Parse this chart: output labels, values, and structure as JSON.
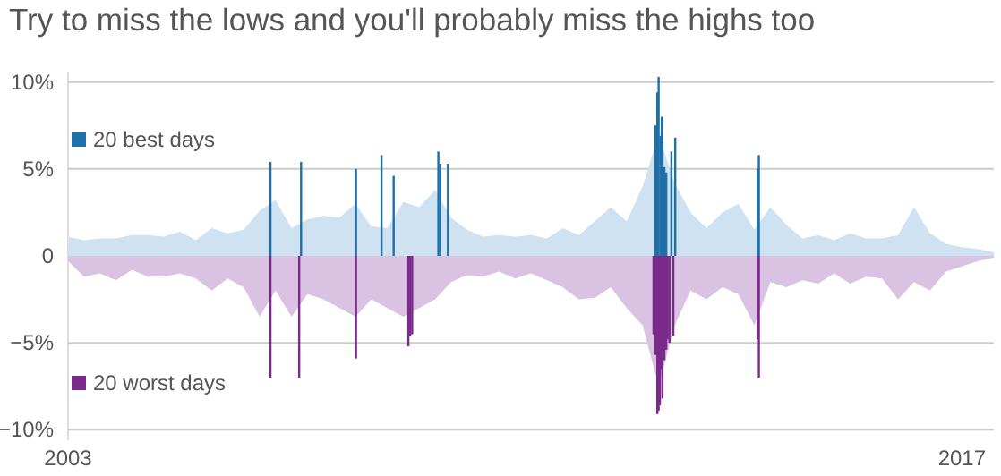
{
  "chart_data": {
    "type": "area",
    "title": "Try to miss the lows and you'll probably miss the highs too",
    "xlim": [
      2003,
      2017.5
    ],
    "xticks": [
      2003,
      2017
    ],
    "ylim": [
      -10.6,
      10.6
    ],
    "yticks": [
      {
        "value": -10,
        "label": "−10%"
      },
      {
        "value": -5,
        "label": "−5%"
      },
      0,
      {
        "value": 5,
        "label": "5%"
      },
      {
        "value": 10,
        "label": "10%"
      }
    ],
    "grid": "y",
    "legend": "left",
    "series": [
      {
        "color": "#cfe2f1",
        "x": [
          2003,
          2003.25,
          2003.5,
          2003.75,
          2004,
          2004.25,
          2004.5,
          2004.75,
          2005,
          2005.25,
          2005.5,
          2005.75,
          2006,
          2006.25,
          2006.5,
          2006.75,
          2007,
          2007.25,
          2007.5,
          2007.75,
          2008,
          2008.25,
          2008.5,
          2008.75,
          2009,
          2009.25,
          2009.5,
          2009.75,
          2010,
          2010.25,
          2010.5,
          2010.75,
          2011,
          2011.25,
          2011.5,
          2011.75,
          2012,
          2012.25,
          2012.5,
          2012.75,
          2013,
          2013.25,
          2013.5,
          2013.75,
          2014,
          2014.25,
          2014.5,
          2014.75,
          2015,
          2015.25,
          2015.5,
          2015.75,
          2016,
          2016.25,
          2016.5,
          2016.75,
          2017,
          2017.25,
          2017.5
        ],
        "values": [
          1.1,
          0.9,
          1.0,
          1.0,
          1.2,
          1.2,
          1.1,
          1.4,
          0.9,
          1.6,
          1.3,
          1.5,
          2.6,
          3.2,
          1.6,
          2.1,
          2.3,
          2.2,
          3.0,
          1.7,
          1.6,
          3.1,
          2.8,
          3.8,
          2.2,
          1.5,
          1.1,
          1.2,
          1.1,
          1.2,
          1.0,
          1.6,
          1.2,
          2.0,
          2.8,
          2.0,
          4.0,
          7.0,
          4.2,
          2.5,
          1.6,
          2.5,
          3.0,
          1.5,
          2.8,
          1.8,
          1.0,
          1.2,
          0.9,
          1.3,
          1.0,
          1.0,
          1.2,
          2.8,
          1.3,
          0.7,
          0.5,
          0.4,
          0.2
        ]
      },
      {
        "color": "#d9c2e2",
        "x": [
          2003,
          2003.25,
          2003.5,
          2003.75,
          2004,
          2004.25,
          2004.5,
          2004.75,
          2005,
          2005.25,
          2005.5,
          2005.75,
          2006,
          2006.25,
          2006.5,
          2006.75,
          2007,
          2007.25,
          2007.5,
          2007.75,
          2008,
          2008.25,
          2008.5,
          2008.75,
          2009,
          2009.25,
          2009.5,
          2009.75,
          2010,
          2010.25,
          2010.5,
          2010.75,
          2011,
          2011.25,
          2011.5,
          2011.75,
          2012,
          2012.25,
          2012.5,
          2012.75,
          2013,
          2013.25,
          2013.5,
          2013.75,
          2014,
          2014.25,
          2014.5,
          2014.75,
          2015,
          2015.25,
          2015.5,
          2015.75,
          2016,
          2016.25,
          2016.5,
          2016.75,
          2017,
          2017.25,
          2017.5
        ],
        "values": [
          -0.3,
          -1.2,
          -1.0,
          -1.4,
          -0.8,
          -1.2,
          -1.2,
          -1.0,
          -1.3,
          -2.0,
          -1.3,
          -1.8,
          -3.5,
          -2.0,
          -3.5,
          -2.2,
          -2.5,
          -3.0,
          -3.5,
          -2.5,
          -3.0,
          -3.5,
          -3.0,
          -2.5,
          -1.5,
          -1.1,
          -1.2,
          -0.9,
          -1.3,
          -1.0,
          -1.4,
          -1.8,
          -2.5,
          -2.4,
          -1.8,
          -3.0,
          -4.0,
          -7.5,
          -4.0,
          -2.0,
          -2.5,
          -1.8,
          -2.2,
          -4.0,
          -1.5,
          -1.8,
          -1.4,
          -1.6,
          -1.0,
          -1.6,
          -1.2,
          -1.3,
          -2.5,
          -1.5,
          -2.0,
          -0.9,
          -0.6,
          -0.3,
          -0.1
        ]
      },
      {
        "type": "bar",
        "name": "20 best days",
        "color": "#1f6fa8",
        "x": [
          2006.17,
          2006.65,
          2007.51,
          2007.91,
          2008.1,
          2008.8,
          2008.83,
          2008.95,
          2012.2,
          2012.23,
          2012.25,
          2012.28,
          2012.3,
          2012.31,
          2012.34,
          2012.37,
          2012.45,
          2012.51,
          2013.8,
          2013.82
        ],
        "values": [
          5.4,
          5.4,
          5.0,
          5.8,
          4.6,
          6.0,
          5.3,
          5.3,
          7.5,
          9.4,
          10.3,
          6.9,
          8.0,
          6.5,
          5.1,
          4.8,
          6.0,
          6.8,
          5.0,
          5.8
        ]
      },
      {
        "type": "bar",
        "name": "20 worst days",
        "color": "#7b2a8c",
        "x": [
          2006.17,
          2006.62,
          2007.51,
          2008.33,
          2008.36,
          2008.39,
          2012.17,
          2012.2,
          2012.23,
          2012.25,
          2012.27,
          2012.28,
          2012.31,
          2012.34,
          2012.37,
          2012.39,
          2012.42,
          2012.48,
          2013.8,
          2013.82
        ],
        "values": [
          -7.0,
          -7.0,
          -5.9,
          -5.2,
          -4.6,
          -4.5,
          -4.5,
          -5.7,
          -9.1,
          -8.9,
          -8.6,
          -6.5,
          -8.2,
          -6.0,
          -5.4,
          -4.8,
          -5.0,
          -4.6,
          -4.8,
          -7.0
        ]
      }
    ]
  }
}
